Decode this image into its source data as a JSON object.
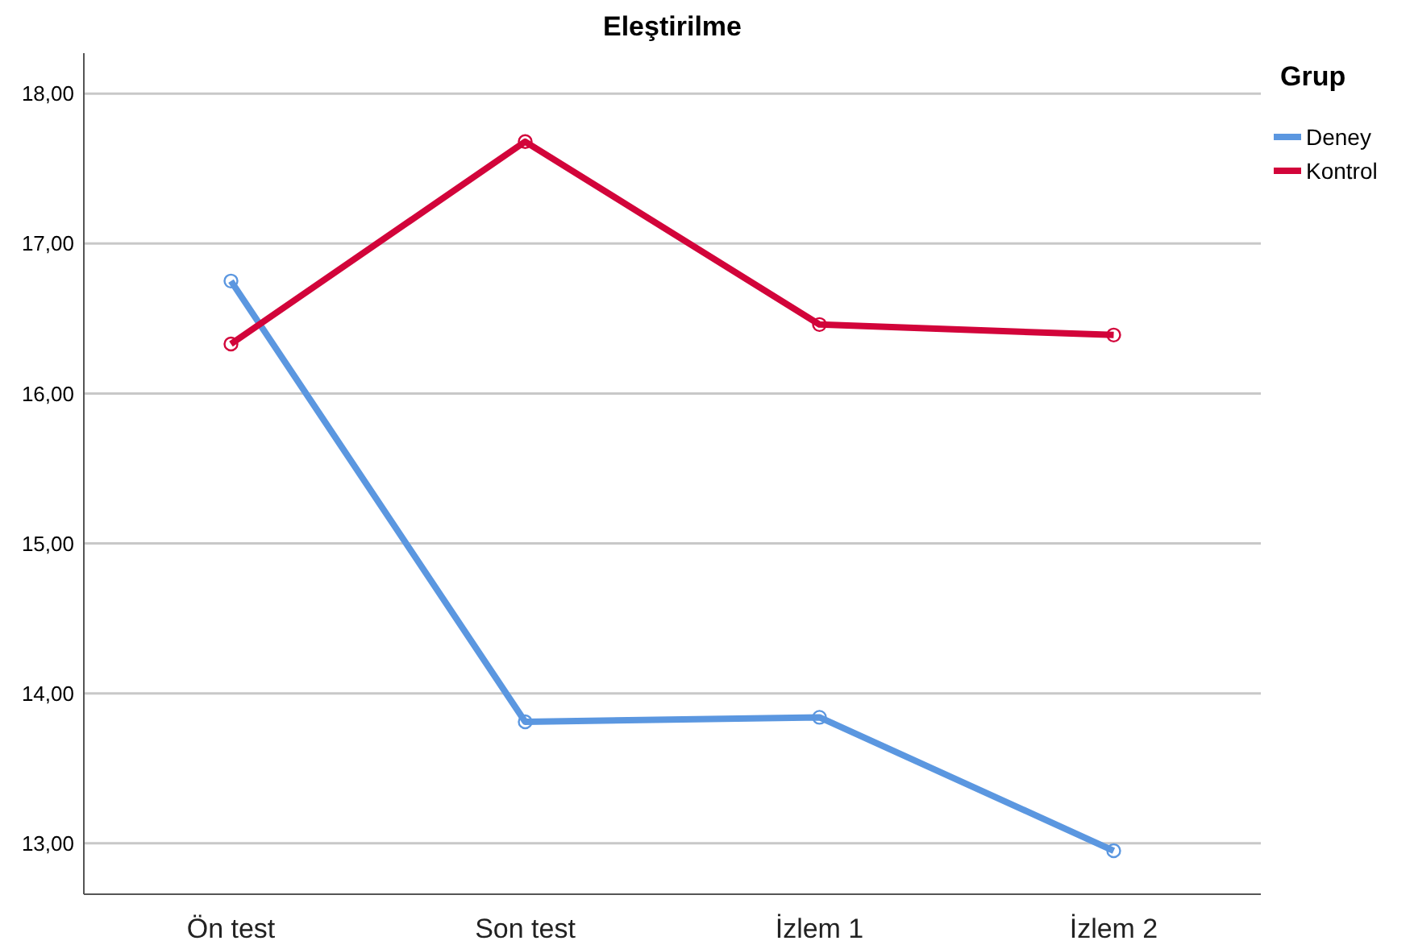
{
  "chart_data": {
    "type": "line",
    "title": "Eleştirilme",
    "legend_title": "Grup",
    "categories": [
      "Ön test",
      "Son test",
      "İzlem 1",
      "İzlem 2"
    ],
    "series": [
      {
        "name": "Deney",
        "color": "#5b97e0",
        "values": [
          16.75,
          13.81,
          13.84,
          12.95
        ]
      },
      {
        "name": "Kontrol",
        "color": "#d2043a",
        "values": [
          16.33,
          17.68,
          16.46,
          16.39
        ]
      }
    ],
    "ylim": [
      12.66,
      18.27
    ],
    "yticks": [
      {
        "value": 13,
        "label": "13,00"
      },
      {
        "value": 14,
        "label": "14,00"
      },
      {
        "value": 15,
        "label": "15,00"
      },
      {
        "value": 16,
        "label": "16,00"
      },
      {
        "value": 17,
        "label": "17,00"
      },
      {
        "value": 18,
        "label": "18,00"
      }
    ],
    "grid": "y",
    "legend": "top right",
    "marker": "circle",
    "line_style": "solid"
  }
}
